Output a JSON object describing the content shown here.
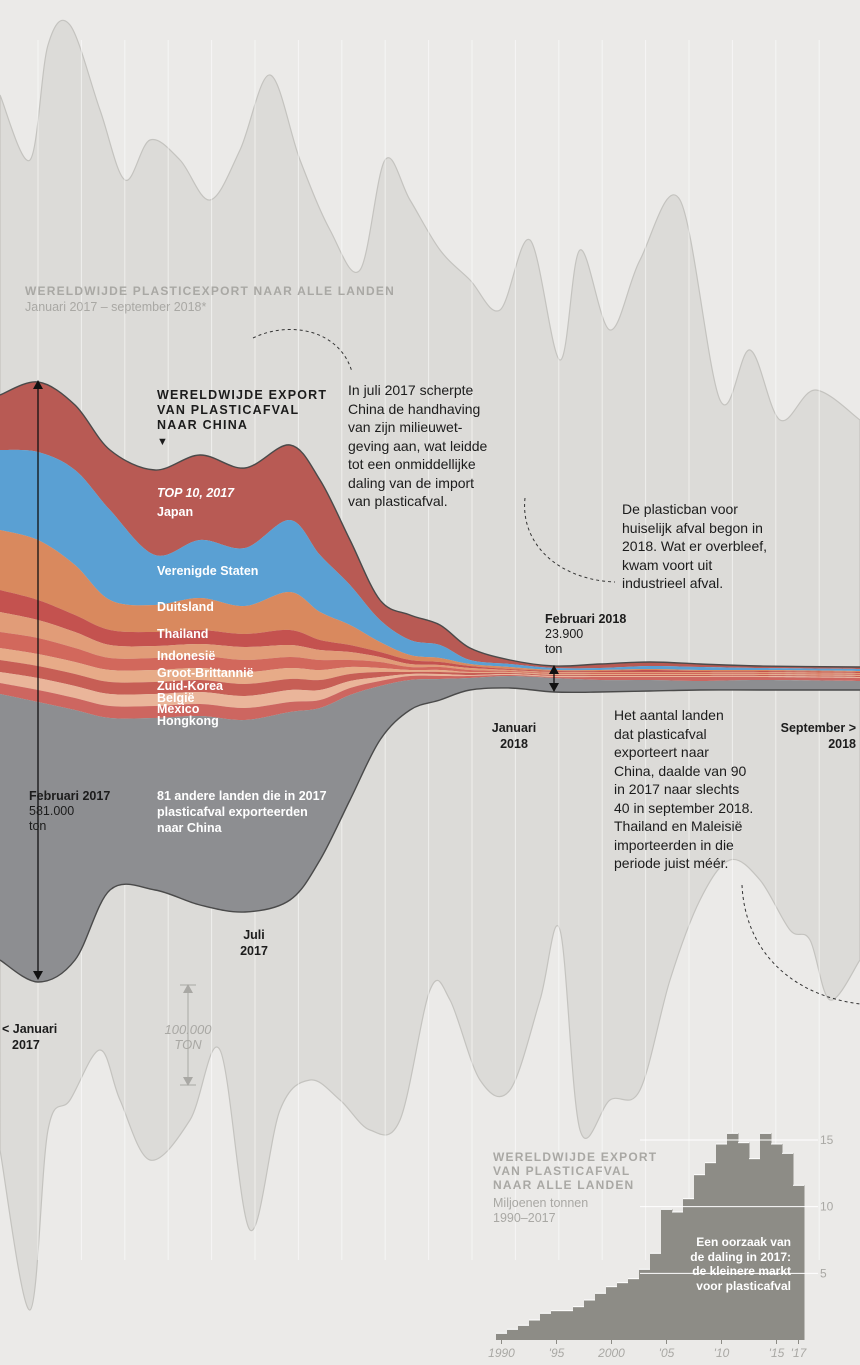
{
  "chart_data": {
    "type": "area",
    "title": "Wereldwijde export van plasticafval naar China",
    "world_stream": {
      "title": "WERELDWIJDE PLASTICEXPORT NAAR ALLE LANDEN",
      "subtitle": "Januari 2017 – september 2018*",
      "color": "#dcdbd8"
    },
    "china_stream": {
      "title_line1": "WERELDWIJDE EXPORT",
      "title_line2": "VAN PLASTICAFVAL",
      "title_line3": "NAAR CHINA",
      "arrow": "▼",
      "top10_label": "TOP 10, 2017",
      "series": [
        {
          "name": "Japan",
          "color": "#b85a54"
        },
        {
          "name": "Verenigde Staten",
          "color": "#5aa0d3"
        },
        {
          "name": "Duitsland",
          "color": "#d9895e"
        },
        {
          "name": "Thailand",
          "color": "#c4524f"
        },
        {
          "name": "Indonesië",
          "color": "#e19c78"
        },
        {
          "name": "Groot-Brittannië",
          "color": "#d2685c"
        },
        {
          "name": "Zuid-Korea",
          "color": "#e7ab88"
        },
        {
          "name": "België",
          "color": "#c75e55"
        },
        {
          "name": "Mexico",
          "color": "#eab59a"
        },
        {
          "name": "Hongkong",
          "color": "#cd6660"
        },
        {
          "name": "81 andere landen die in 2017 plasticafval exporteerden naar China",
          "color": "#8d8e91"
        }
      ],
      "other_label_lines": [
        "81 andere landen die in 2017",
        "plasticafval exporteerden",
        "naar China"
      ]
    },
    "annotations": {
      "feb2017": {
        "label": "Februari 2017",
        "value": "581.000",
        "unit": "ton"
      },
      "feb2018": {
        "label": "Februari 2018",
        "value": "23.900",
        "unit": "ton"
      },
      "scale": {
        "line1": "100.000",
        "line2": "TON"
      },
      "note_july": [
        "In juli 2017 scherpte",
        "China de handhaving",
        "van zijn milieuwet-",
        "geving aan, wat leidde",
        "tot een onmiddellijke",
        "daling van de import",
        "van plasticafval."
      ],
      "note_ban": [
        "De plasticban voor",
        "huiselijk afval begon in",
        "2018. Wat er overbleef,",
        "kwam voort uit",
        "industrieel afval."
      ],
      "note_countries": [
        "Het aantal landen",
        "dat plasticafval",
        "exporteert naar",
        "China, daalde van 90",
        "in 2017 naar slechts",
        "40 in september 2018.",
        "Thailand en Maleisië",
        "importeerden in die",
        "periode juist méér."
      ]
    },
    "time_labels": {
      "jan2017": [
        "< Januari",
        "2017"
      ],
      "jul2017": [
        "Juli",
        "2017"
      ],
      "jan2018": [
        "Januari",
        "2018"
      ],
      "sep2018": [
        "September >",
        "2018"
      ]
    },
    "inset": {
      "type": "bar",
      "title_lines": [
        "WERELDWIJDE EXPORT",
        "VAN PLASTICAFVAL",
        "NAAR ALLE LANDEN"
      ],
      "unit": "Miljoenen tonnen",
      "period": "1990–2017",
      "years": [
        1990,
        1991,
        1992,
        1993,
        1994,
        1995,
        1996,
        1997,
        1998,
        1999,
        2000,
        2001,
        2002,
        2003,
        2004,
        2005,
        2006,
        2007,
        2008,
        2009,
        2010,
        2011,
        2012,
        2013,
        2014,
        2015,
        2016,
        2017
      ],
      "values": [
        0.5,
        0.8,
        1.1,
        1.5,
        2.0,
        2.2,
        2.2,
        2.5,
        3.0,
        3.5,
        4.0,
        4.3,
        4.6,
        5.3,
        6.5,
        9.8,
        9.6,
        10.6,
        12.4,
        13.3,
        14.7,
        15.5,
        14.8,
        13.6,
        15.5,
        14.7,
        14.0,
        11.6
      ],
      "ylim": [
        0,
        16
      ],
      "yticks": [
        "5",
        "10",
        "15"
      ],
      "xticks": [
        "1990",
        "'95",
        "2000",
        "'05",
        "'10",
        "'15",
        "'17"
      ],
      "note_lines": [
        "Een oorzaak van",
        "de daling in 2017:",
        "de kleinere markt",
        "voor plasticafval"
      ],
      "bar_color": "#8d8c86"
    }
  }
}
